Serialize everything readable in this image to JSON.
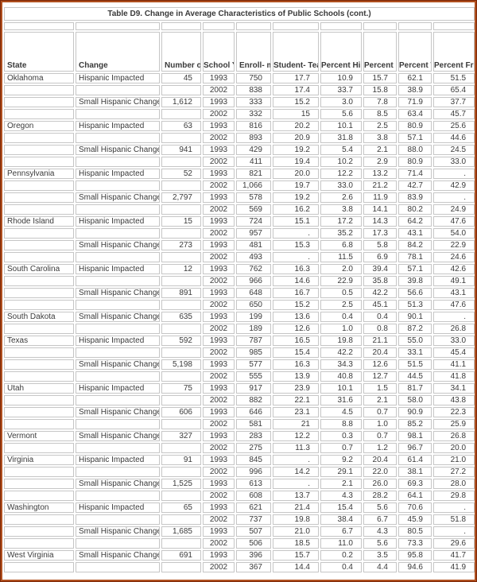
{
  "title": "Table D9. Change in Average Characteristics of Public Schools (cont.)",
  "colors": {
    "frame": "#B0501F",
    "frame_dark": "#7E2807",
    "grid": "#C6C6C6",
    "title_text": "#2E2EA8",
    "state_text": "#A8503E",
    "header_rule": "#000000"
  },
  "table": {
    "missing_value_symbol": ".",
    "columns": [
      {
        "id": "state",
        "label": "State"
      },
      {
        "id": "change",
        "label": "Change"
      },
      {
        "id": "num_schools",
        "label": "Number\nof\nSchools"
      },
      {
        "id": "school_year",
        "label": "School\nYear"
      },
      {
        "id": "enrollment",
        "label": "Enroll-\nment"
      },
      {
        "id": "student_teacher_ratio",
        "label": "Student-\nTeacher\nRatio"
      },
      {
        "id": "pct_hispanic",
        "label": "Percent\nHispanic"
      },
      {
        "id": "pct_black",
        "label": "Percent\nBlack"
      },
      {
        "id": "pct_white",
        "label": "Percent\nWhite"
      },
      {
        "id": "pct_free_lunch",
        "label": "Percent\nFree\nLunch"
      }
    ],
    "rows": [
      [
        "Oklahoma",
        "Hispanic Impacted",
        "45",
        "1993",
        "750",
        "17.7",
        "10.9",
        "15.7",
        "62.1",
        "51.5"
      ],
      [
        "",
        "",
        "",
        "2002",
        "838",
        "17.4",
        "33.7",
        "15.8",
        "38.9",
        "65.4"
      ],
      [
        "",
        "Small Hispanic Change",
        "1,612",
        "1993",
        "333",
        "15.2",
        "3.0",
        "7.8",
        "71.9",
        "37.7"
      ],
      [
        "",
        "",
        "",
        "2002",
        "332",
        "15",
        "5.6",
        "8.5",
        "63.4",
        "45.7"
      ],
      [
        "Oregon",
        "Hispanic Impacted",
        "63",
        "1993",
        "816",
        "20.2",
        "10.1",
        "2.5",
        "80.9",
        "25.6"
      ],
      [
        "",
        "",
        "",
        "2002",
        "893",
        "20.9",
        "31.8",
        "3.8",
        "57.1",
        "44.6"
      ],
      [
        "",
        "Small Hispanic Change",
        "941",
        "1993",
        "429",
        "19.2",
        "5.4",
        "2.1",
        "88.0",
        "24.5"
      ],
      [
        "",
        "",
        "",
        "2002",
        "411",
        "19.4",
        "10.2",
        "2.9",
        "80.9",
        "33.0"
      ],
      [
        "Pennsylvania",
        "Hispanic Impacted",
        "52",
        "1993",
        "821",
        "20.0",
        "12.2",
        "13.2",
        "71.4",
        "."
      ],
      [
        "",
        "",
        "",
        "2002",
        "1,066",
        "19.7",
        "33.0",
        "21.2",
        "42.7",
        "42.9"
      ],
      [
        "",
        "Small Hispanic Change",
        "2,797",
        "1993",
        "578",
        "19.2",
        "2.6",
        "11.9",
        "83.9",
        "."
      ],
      [
        "",
        "",
        "",
        "2002",
        "569",
        "16.2",
        "3.8",
        "14.1",
        "80.2",
        "24.9"
      ],
      [
        "Rhode Island",
        "Hispanic Impacted",
        "15",
        "1993",
        "724",
        "15.1",
        "17.2",
        "14.3",
        "64.2",
        "47.6"
      ],
      [
        "",
        "",
        "",
        "2002",
        "957",
        ".",
        "35.2",
        "17.3",
        "43.1",
        "54.0"
      ],
      [
        "",
        "Small Hispanic Change",
        "273",
        "1993",
        "481",
        "15.3",
        "6.8",
        "5.8",
        "84.2",
        "22.9"
      ],
      [
        "",
        "",
        "",
        "2002",
        "493",
        ".",
        "11.5",
        "6.9",
        "78.1",
        "24.6"
      ],
      [
        "South Carolina",
        "Hispanic Impacted",
        "12",
        "1993",
        "762",
        "16.3",
        "2.0",
        "39.4",
        "57.1",
        "42.6"
      ],
      [
        "",
        "",
        "",
        "2002",
        "966",
        "14.6",
        "22.9",
        "35.8",
        "39.8",
        "49.1"
      ],
      [
        "",
        "Small Hispanic Change",
        "891",
        "1993",
        "648",
        "16.7",
        "0.5",
        "42.2",
        "56.6",
        "43.1"
      ],
      [
        "",
        "",
        "",
        "2002",
        "650",
        "15.2",
        "2.5",
        "45.1",
        "51.3",
        "47.6"
      ],
      [
        "South Dakota",
        "Small Hispanic Change",
        "635",
        "1993",
        "199",
        "13.6",
        "0.4",
        "0.4",
        "90.1",
        "."
      ],
      [
        "",
        "",
        "",
        "2002",
        "189",
        "12.6",
        "1.0",
        "0.8",
        "87.2",
        "26.8"
      ],
      [
        "Texas",
        "Hispanic Impacted",
        "592",
        "1993",
        "787",
        "16.5",
        "19.8",
        "21.1",
        "55.0",
        "33.0"
      ],
      [
        "",
        "",
        "",
        "2002",
        "985",
        "15.4",
        "42.2",
        "20.4",
        "33.1",
        "45.4"
      ],
      [
        "",
        "Small Hispanic Change",
        "5,198",
        "1993",
        "577",
        "16.3",
        "34.3",
        "12.6",
        "51.5",
        "41.1"
      ],
      [
        "",
        "",
        "",
        "2002",
        "555",
        "13.9",
        "40.8",
        "12.7",
        "44.5",
        "41.8"
      ],
      [
        "Utah",
        "Hispanic Impacted",
        "75",
        "1993",
        "917",
        "23.9",
        "10.1",
        "1.5",
        "81.7",
        "34.1"
      ],
      [
        "",
        "",
        "",
        "2002",
        "882",
        "22.1",
        "31.6",
        "2.1",
        "58.0",
        "43.8"
      ],
      [
        "",
        "Small Hispanic Change",
        "606",
        "1993",
        "646",
        "23.1",
        "4.5",
        "0.7",
        "90.9",
        "22.3"
      ],
      [
        "",
        "",
        "",
        "2002",
        "581",
        "21",
        "8.8",
        "1.0",
        "85.2",
        "25.9"
      ],
      [
        "Vermont",
        "Small Hispanic Change",
        "327",
        "1993",
        "283",
        "12.2",
        "0.3",
        "0.7",
        "98.1",
        "26.8"
      ],
      [
        "",
        "",
        "",
        "2002",
        "275",
        "11.3",
        "0.7",
        "1.2",
        "96.7",
        "20.0"
      ],
      [
        "Virginia",
        "Hispanic Impacted",
        "91",
        "1993",
        "845",
        ".",
        "9.2",
        "20.4",
        "61.4",
        "21.0"
      ],
      [
        "",
        "",
        "",
        "2002",
        "996",
        "14.2",
        "29.1",
        "22.0",
        "38.1",
        "27.2"
      ],
      [
        "",
        "Small Hispanic Change",
        "1,525",
        "1993",
        "613",
        ".",
        "2.1",
        "26.0",
        "69.3",
        "28.0"
      ],
      [
        "",
        "",
        "",
        "2002",
        "608",
        "13.7",
        "4.3",
        "28.2",
        "64.1",
        "29.8"
      ],
      [
        "Washington",
        "Hispanic Impacted",
        "65",
        "1993",
        "621",
        "21.4",
        "15.4",
        "5.6",
        "70.6",
        "."
      ],
      [
        "",
        "",
        "",
        "2002",
        "737",
        "19.8",
        "38.4",
        "6.7",
        "45.9",
        "51.8"
      ],
      [
        "",
        "Small Hispanic Change",
        "1,685",
        "1993",
        "507",
        "21.0",
        "6.7",
        "4.3",
        "80.5",
        "."
      ],
      [
        "",
        "",
        "",
        "2002",
        "506",
        "18.5",
        "11.0",
        "5.6",
        "73.3",
        "29.6"
      ],
      [
        "West Virginia",
        "Small Hispanic Change",
        "691",
        "1993",
        "396",
        "15.7",
        "0.2",
        "3.5",
        "95.8",
        "41.7"
      ],
      [
        "",
        "",
        "",
        "2002",
        "367",
        "14.4",
        "0.4",
        "4.4",
        "94.6",
        "41.9"
      ]
    ]
  }
}
